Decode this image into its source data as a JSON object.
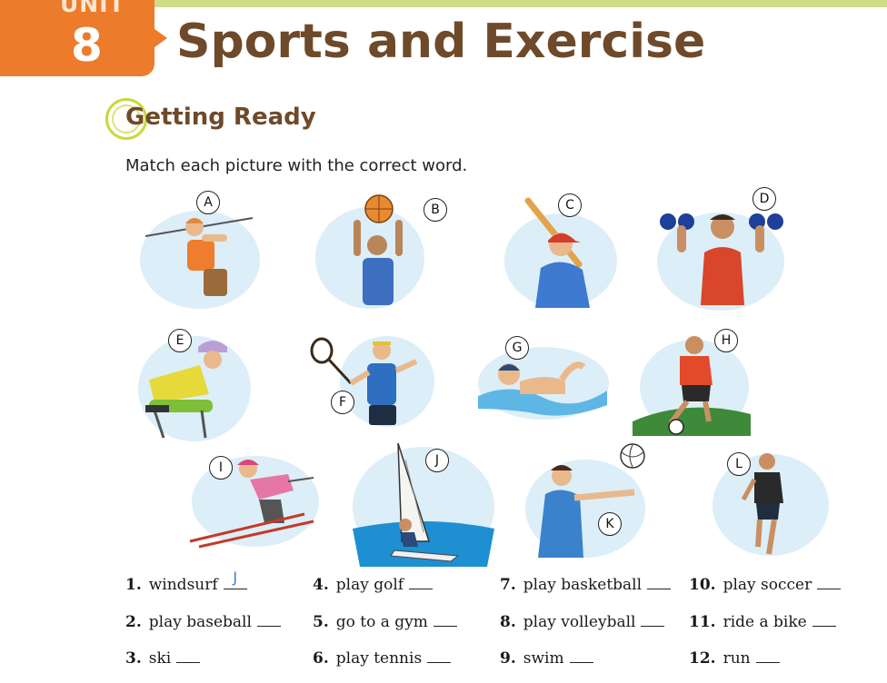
{
  "header": {
    "unit_word": "UNIT",
    "unit_number": "8",
    "title": "Sports and Exercise"
  },
  "section": {
    "title": "Getting Ready",
    "instruction": "Match each picture with the correct word."
  },
  "pictures": [
    {
      "letter": "A",
      "subject": "golf"
    },
    {
      "letter": "B",
      "subject": "basketball"
    },
    {
      "letter": "C",
      "subject": "baseball"
    },
    {
      "letter": "D",
      "subject": "gym"
    },
    {
      "letter": "E",
      "subject": "bike"
    },
    {
      "letter": "F",
      "subject": "tennis"
    },
    {
      "letter": "G",
      "subject": "swim"
    },
    {
      "letter": "H",
      "subject": "soccer"
    },
    {
      "letter": "I",
      "subject": "ski"
    },
    {
      "letter": "J",
      "subject": "windsurf"
    },
    {
      "letter": "K",
      "subject": "volleyball"
    },
    {
      "letter": "L",
      "subject": "run"
    }
  ],
  "colors": {
    "unit_tab": "#ec7c2c",
    "title": "#6e4a2a",
    "accent": "#c9d83a",
    "answer": "#3a7ec8"
  },
  "items": [
    {
      "number": "1.",
      "text": "windsurf",
      "answer": "J"
    },
    {
      "number": "2.",
      "text": "play baseball",
      "answer": ""
    },
    {
      "number": "3.",
      "text": "ski",
      "answer": ""
    },
    {
      "number": "4.",
      "text": "play golf",
      "answer": ""
    },
    {
      "number": "5.",
      "text": "go to a gym",
      "answer": ""
    },
    {
      "number": "6.",
      "text": "play tennis",
      "answer": ""
    },
    {
      "number": "7.",
      "text": "play basketball",
      "answer": ""
    },
    {
      "number": "8.",
      "text": "play volleyball",
      "answer": ""
    },
    {
      "number": "9.",
      "text": "swim",
      "answer": ""
    },
    {
      "number": "10.",
      "text": "play soccer",
      "answer": ""
    },
    {
      "number": "11.",
      "text": "ride a bike",
      "answer": ""
    },
    {
      "number": "12.",
      "text": "run",
      "answer": ""
    }
  ]
}
